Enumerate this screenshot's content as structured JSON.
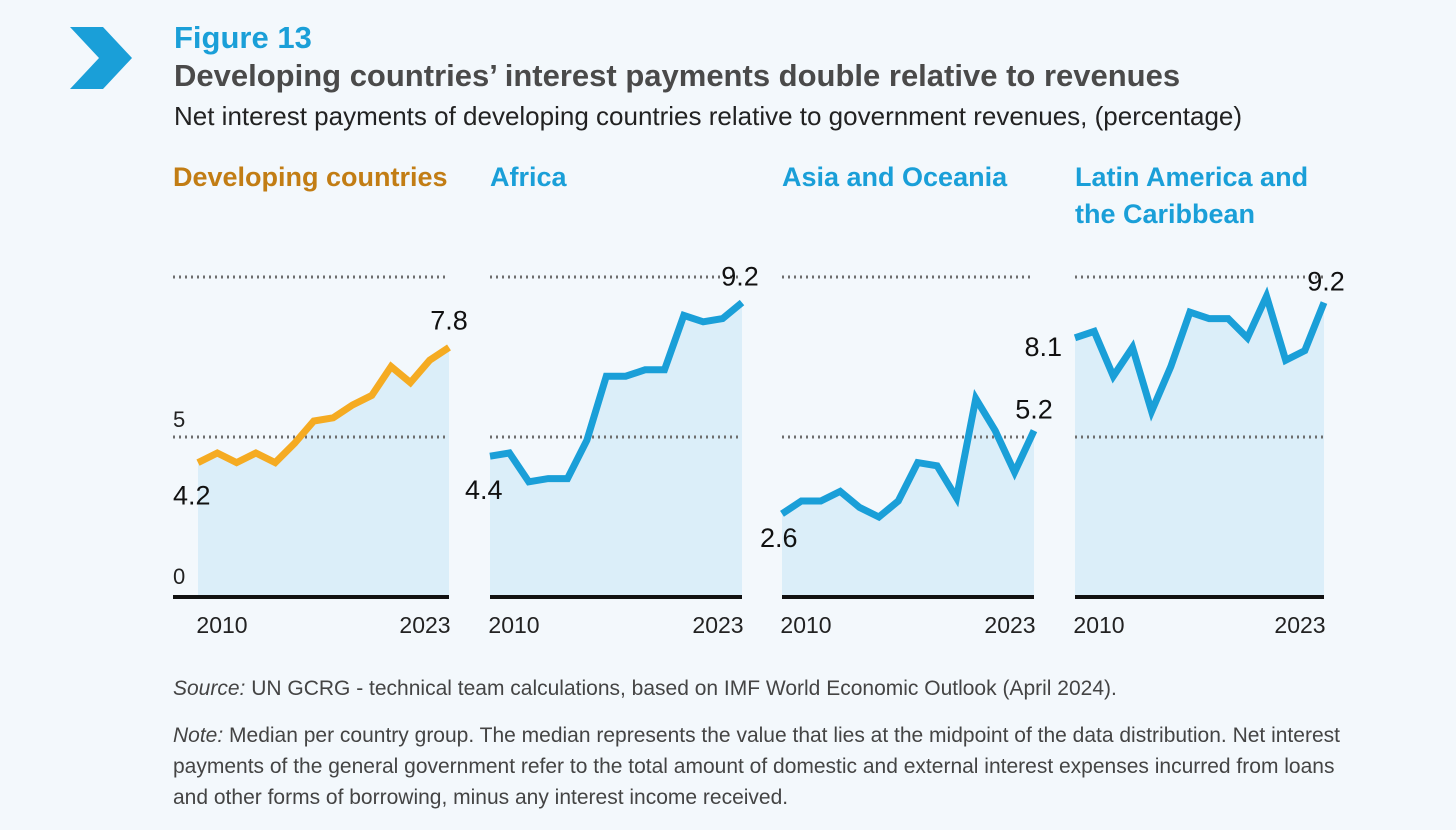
{
  "header": {
    "figure_label": "Figure 13",
    "title": "Developing countries’ interest payments double relative to revenues",
    "subtitle": "Net interest payments of developing countries relative to government revenues, (percentage)"
  },
  "colors": {
    "accent_blue": "#1a9fd8",
    "developing_orange": "#f5ab22",
    "developing_title": "#c27d14",
    "area_fill": "#dbeef9"
  },
  "chart_data": [
    {
      "type": "area",
      "title": "Developing countries",
      "title_color": "#c27d14",
      "line_color": "#f5ab22",
      "x_ticks": [
        "2010",
        "2023"
      ],
      "y_ticks": [
        "0",
        "5"
      ],
      "x": [
        2010,
        2011,
        2012,
        2013,
        2014,
        2015,
        2016,
        2017,
        2018,
        2019,
        2020,
        2021,
        2022,
        2023
      ],
      "values": [
        4.2,
        4.5,
        4.2,
        4.5,
        4.2,
        4.8,
        5.5,
        5.6,
        6.0,
        6.3,
        7.2,
        6.7,
        7.4,
        7.8
      ],
      "start_label": "4.2",
      "end_label": "7.8",
      "ylim": [
        0,
        10
      ]
    },
    {
      "type": "area",
      "title": "Africa",
      "title_color": "#1a9fd8",
      "line_color": "#1a9fd8",
      "x_ticks": [
        "2010",
        "2023"
      ],
      "x": [
        2010,
        2011,
        2012,
        2013,
        2014,
        2015,
        2016,
        2017,
        2018,
        2019,
        2020,
        2021,
        2022,
        2023
      ],
      "values": [
        4.4,
        4.5,
        3.6,
        3.7,
        3.7,
        4.9,
        6.9,
        6.9,
        7.1,
        7.1,
        8.8,
        8.6,
        8.7,
        9.2
      ],
      "start_label": "4.4",
      "end_label": "9.2",
      "ylim": [
        0,
        10
      ]
    },
    {
      "type": "area",
      "title": "Asia and Oceania",
      "title_color": "#1a9fd8",
      "line_color": "#1a9fd8",
      "x_ticks": [
        "2010",
        "2023"
      ],
      "x": [
        2010,
        2011,
        2012,
        2013,
        2014,
        2015,
        2016,
        2017,
        2018,
        2019,
        2020,
        2021,
        2022,
        2023
      ],
      "values": [
        2.6,
        3.0,
        3.0,
        3.3,
        2.8,
        2.5,
        3.0,
        4.2,
        4.1,
        3.1,
        6.2,
        5.2,
        3.9,
        5.2
      ],
      "start_label": "2.6",
      "end_label": "5.2",
      "ylim": [
        0,
        10
      ]
    },
    {
      "type": "area",
      "title_lines": [
        "Latin America and",
        "the Caribbean"
      ],
      "title_color": "#1a9fd8",
      "line_color": "#1a9fd8",
      "x_ticks": [
        "2010",
        "2023"
      ],
      "x": [
        2010,
        2011,
        2012,
        2013,
        2014,
        2015,
        2016,
        2017,
        2018,
        2019,
        2020,
        2021,
        2022,
        2023
      ],
      "values": [
        8.1,
        8.3,
        6.9,
        7.8,
        5.8,
        7.2,
        8.9,
        8.7,
        8.7,
        8.1,
        9.4,
        7.4,
        7.7,
        9.2
      ],
      "start_label": "8.1",
      "end_label": "9.2",
      "ylim": [
        0,
        10
      ]
    }
  ],
  "footer": {
    "source_label": "Source:",
    "source_text": " UN GCRG - technical team calculations, based on IMF World Economic Outlook (April 2024).",
    "note_label": "Note:",
    "note_text": " Median per country group. The median represents the value that lies at the midpoint of the data distribution. Net interest payments of the general government refer to the total amount of domestic and external interest expenses incurred from loans and other forms of borrowing, minus any interest income received."
  }
}
